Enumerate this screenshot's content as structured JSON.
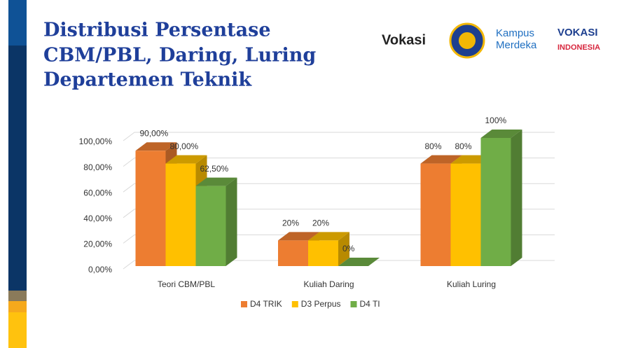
{
  "header": {
    "title_lines": [
      "Distribusi Persentase",
      "CBM/PBL, Daring, Luring",
      "Departemen Teknik"
    ],
    "logos": [
      "Vokasi",
      "Kampus",
      "Merdeka",
      "VOKASI",
      "INDONESIA"
    ]
  },
  "chart_data": {
    "type": "bar3d",
    "categories": [
      "Teori CBM/PBL",
      "Kuliah Daring",
      "Kuliah Luring"
    ],
    "series": [
      {
        "name": "D4 TRIK",
        "color": "#ed7d31",
        "values": [
          90,
          20,
          80
        ],
        "value_labels": [
          "90,00%",
          "20%",
          "80%"
        ]
      },
      {
        "name": "D3 Perpus",
        "color": "#ffc000",
        "values": [
          80,
          20,
          80
        ],
        "value_labels": [
          "80,00%",
          "20%",
          "80%"
        ]
      },
      {
        "name": "D4 TI",
        "color": "#70ad47",
        "values": [
          62.5,
          0,
          100
        ],
        "value_labels": [
          "62,50%",
          "0%",
          "100%"
        ]
      }
    ],
    "ylim": [
      0,
      100
    ],
    "yticks": [
      {
        "value": 0,
        "label": "0,00%"
      },
      {
        "value": 20,
        "label": "20,00%"
      },
      {
        "value": 40,
        "label": "40,00%"
      },
      {
        "value": 60,
        "label": "60,00%"
      },
      {
        "value": 80,
        "label": "80,00%"
      },
      {
        "value": 100,
        "label": "100,00%"
      }
    ],
    "grid": true,
    "legend": "bottom"
  }
}
